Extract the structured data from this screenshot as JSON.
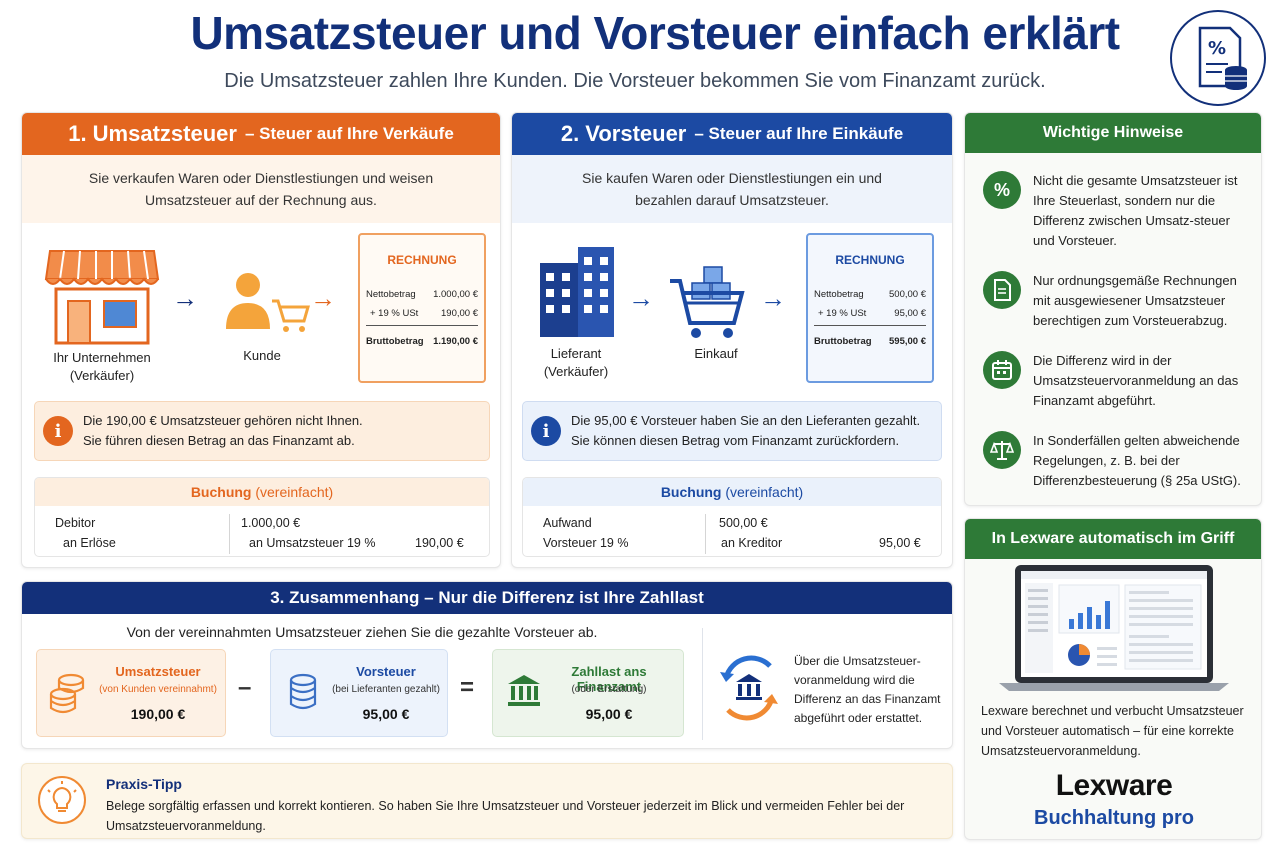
{
  "header": {
    "title": "Umsatzsteuer und Vorsteuer einfach erklärt",
    "subtitle": "Die Umsatzsteuer zahlen Ihre Kunden. Die Vorsteuer bekommen Sie vom Finanzamt zurück.",
    "icon": "percent-document-icon"
  },
  "umsatzsteuer": {
    "title": "1. Umsatzsteuer",
    "title_suffix": "– Steuer auf Ihre Verkäufe",
    "intro": "Sie verkaufen Waren oder Dienstlestiungen und weisen Umsatzsteuer auf der Rechnung aus.",
    "seller_label": "Ihr Unternehmen",
    "seller_sub": "(Verkäufer)",
    "customer_label": "Kunde",
    "invoice": {
      "title": "RECHNUNG",
      "rows": [
        {
          "label": "Nettobetrag",
          "value": "1.000,00 €"
        },
        {
          "label": "+ 19 % USt",
          "value": "190,00 €"
        },
        {
          "label": "Bruttobetrag",
          "value": "1.190,00 €"
        }
      ]
    },
    "info_line1": "Die 190,00 € Umsatzsteuer gehören nicht Ihnen.",
    "info_line2": "Sie führen diesen Betrag an das Finanzamt ab.",
    "booking": {
      "title": "Buchung",
      "title_suffix": "(vereinfacht)",
      "debit1": "Debitor",
      "debit2": "an Erlöse",
      "amount1": "1.000,00 €",
      "credit2": "an Umsatzsteuer 19 %",
      "amount2": "190,00 €"
    }
  },
  "vorsteuer": {
    "title": "2. Vorsteuer",
    "title_suffix": "– Steuer auf Ihre Einkäufe",
    "intro": "Sie kaufen Waren oder Dienstlestiungen ein und bezahlen darauf Umsatzsteuer.",
    "supplier_label": "Lieferant",
    "supplier_sub": "(Verkäufer)",
    "purchase_label": "Einkauf",
    "invoice": {
      "title": "RECHNUNG",
      "rows": [
        {
          "label": "Nettobetrag",
          "value": "500,00 €"
        },
        {
          "label": "+ 19 % USt",
          "value": "95,00 €"
        },
        {
          "label": "Bruttobetrag",
          "value": "595,00 €"
        }
      ]
    },
    "info_line1": "Die 95,00 € Vorsteuer haben Sie an den Lieferanten gezahlt.",
    "info_line2": "Sie können diesen Betrag vom Finanzamt zurückfordern.",
    "booking": {
      "title": "Buchung",
      "title_suffix": "(vereinfacht)",
      "debit1": "Aufwand",
      "debit2": "Vorsteuer 19 %",
      "amount1": "500,00 €",
      "credit2": "an Kreditor",
      "amount2": "95,00 €"
    }
  },
  "zusammenhang": {
    "title": "3. Zusammenhang – Nur die Differenz ist Ihre Zahllast",
    "intro": "Von der vereinnahmten Umsatzsteuer ziehen Sie die gezahlte Vorsteuer ab.",
    "ust": {
      "title": "Umsatzsteuer",
      "sub": "(von Kunden vereinnahmt)",
      "value": "190,00 €"
    },
    "minus": "–",
    "vst": {
      "title": "Vorsteuer",
      "sub": "(bei Lieferanten gezahlt)",
      "value": "95,00 €"
    },
    "equals": "=",
    "zahllast": {
      "title": "Zahllast ans Finanzamt",
      "sub": "(oder Erstattung)",
      "value": "95,00 €"
    },
    "note": "Über die Umsatzsteuer-voranmeldung wird die Differenz an das Finanzamt abgeführt oder erstattet."
  },
  "tip": {
    "title": "Praxis-Tipp",
    "text": "Belege sorgfältig erfassen und korrekt kontieren. So haben Sie Ihre Umsatzsteuer und Vorsteuer jederzeit im Blick und vermeiden Fehler bei der Umsatzsteuervoranmeldung."
  },
  "hinweise": {
    "title": "Wichtige Hinweise",
    "items": [
      {
        "icon": "percent-icon",
        "text": "Nicht die gesamte Umsatzsteuer ist Ihre Steuerlast, sondern nur die Differenz zwischen Umsatz-steuer und Vorsteuer."
      },
      {
        "icon": "document-icon",
        "text": "Nur ordnungsgemäße Rechnungen mit ausgewiesener Umsatzsteuer berechtigen zum Vorsteuerabzug."
      },
      {
        "icon": "calendar-icon",
        "text": "Die Differenz wird in der Umsatzsteuervoranmeldung an das Finanzamt abgeführt."
      },
      {
        "icon": "scales-icon",
        "text": "In Sonderfällen gelten abweichende Regelungen, z. B. bei der Differenzbesteuerung (§ 25a UStG)."
      }
    ]
  },
  "lexware": {
    "title": "In Lexware automatisch im Griff",
    "text": "Lexware berechnet und verbucht Umsatzsteuer und Vorsteuer automatisch – für eine korrekte Umsatzsteuervoranmeldung.",
    "brand": "Lexware",
    "product": "Buchhaltung pro"
  },
  "colors": {
    "orange": "#e3661f",
    "blue": "#1c4aa3",
    "navy": "#13307a",
    "green": "#2e7a37"
  }
}
